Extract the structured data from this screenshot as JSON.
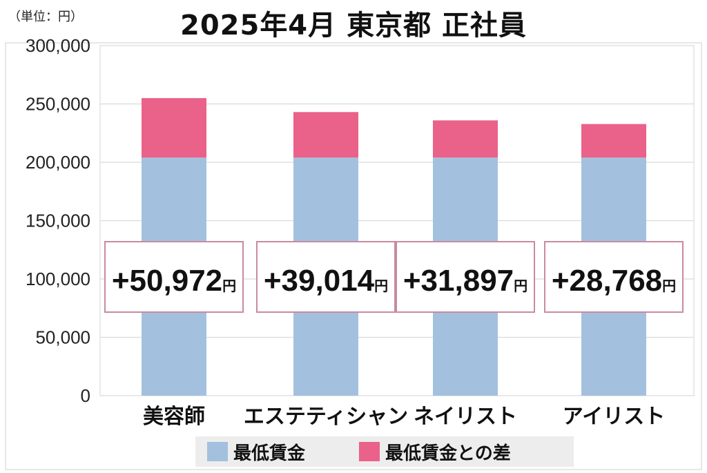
{
  "header": {
    "unit": "（単位：円）",
    "title": "2025年4月  東京都  正社員"
  },
  "chart_data": {
    "type": "bar",
    "stacked": true,
    "title": "2025年4月  東京都  正社員",
    "unit_label": "（単位：円）",
    "categories": [
      "美容師",
      "エステティシャン",
      "ネイリスト",
      "アイリスト"
    ],
    "series": [
      {
        "name": "最低賃金",
        "values": [
          204000,
          204000,
          204000,
          204000
        ],
        "color": "#a3c1de"
      },
      {
        "name": "最低賃金との差",
        "values": [
          50972,
          39014,
          31897,
          28768
        ],
        "color": "#ea6189"
      }
    ],
    "difference_labels": [
      "+50,972",
      "+39,014",
      "+31,897",
      "+28,768"
    ],
    "difference_unit": "円",
    "ylim": [
      0,
      300000
    ],
    "yticks": [
      0,
      50000,
      100000,
      150000,
      200000,
      250000,
      300000
    ],
    "ytick_labels": [
      "0",
      "50,000",
      "100,000",
      "150,000",
      "200,000",
      "250,000",
      "300,000"
    ],
    "grid": true,
    "legend_position": "bottom"
  }
}
